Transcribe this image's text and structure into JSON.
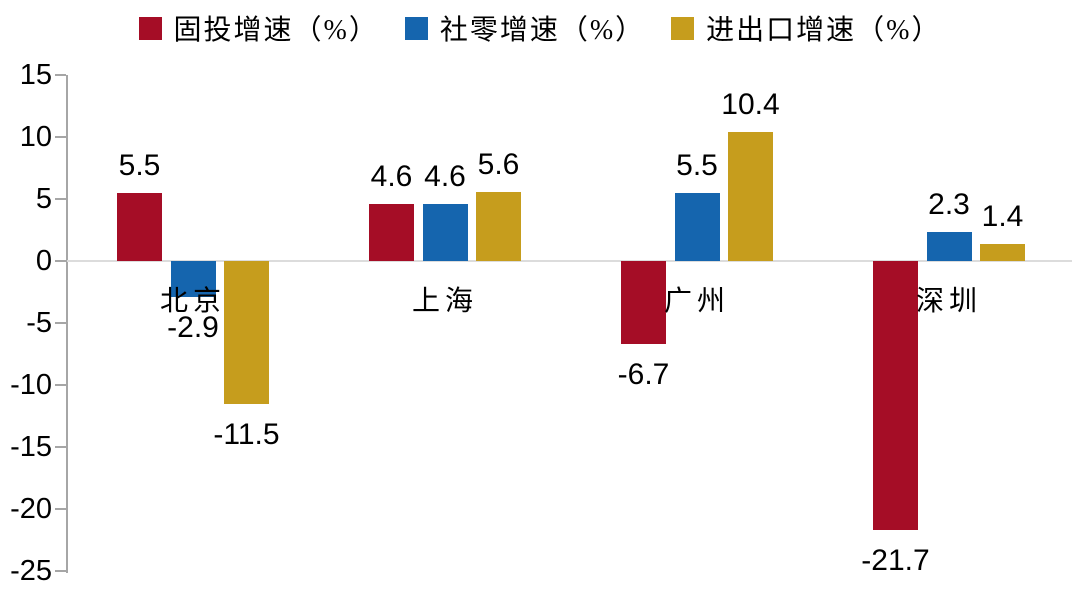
{
  "chart_data": {
    "type": "bar",
    "title": "",
    "legend_position": "top",
    "grid": "zero-line-only",
    "categories": [
      {
        "label": "北京",
        "slug": "beijing"
      },
      {
        "label": "上海",
        "slug": "shanghai"
      },
      {
        "label": "广州",
        "slug": "guangzhou"
      },
      {
        "label": "深圳",
        "slug": "shenzhen"
      }
    ],
    "series": [
      {
        "name": "固投增速（%）",
        "slug": "fixed-investment-growth",
        "color": "#a50d26",
        "values": [
          5.5,
          4.6,
          -6.7,
          -21.7
        ]
      },
      {
        "name": "社零增速（%）",
        "slug": "retail-sales-growth",
        "color": "#1565ae",
        "values": [
          -2.9,
          4.6,
          5.5,
          2.3
        ]
      },
      {
        "name": "进出口增速（%）",
        "slug": "import-export-growth",
        "color": "#c69d1d",
        "values": [
          -11.5,
          5.6,
          10.4,
          1.4
        ]
      }
    ],
    "y_axis": {
      "min": -25,
      "max": 15,
      "step": 5,
      "ticks": [
        15,
        10,
        5,
        0,
        -5,
        -10,
        -15,
        -20,
        -25
      ]
    },
    "colors": {
      "axis": "#a6a6a6",
      "zero_line": "#dcdcdc",
      "text": "#000000"
    }
  }
}
